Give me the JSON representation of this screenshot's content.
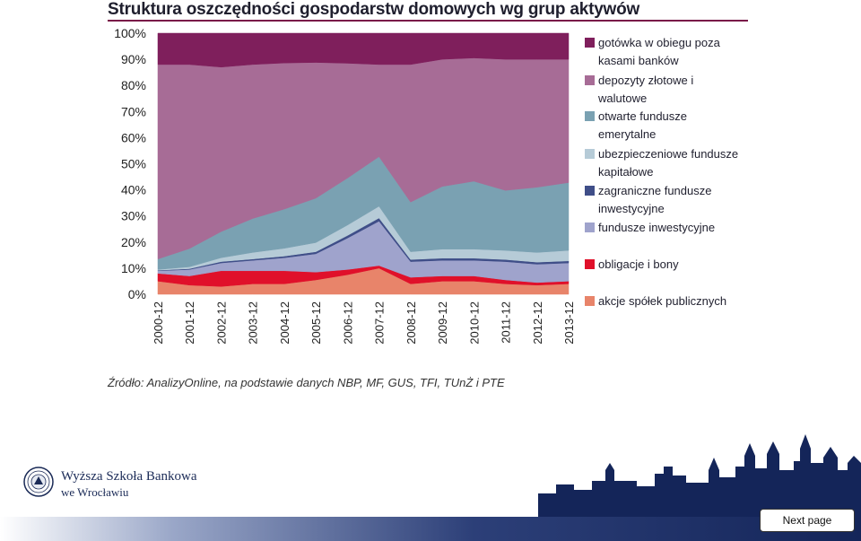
{
  "header": {
    "title": "Struktura oszczędności gospodarstw domowych wg grup aktywów"
  },
  "source_note": "Źródło: AnalizyOnline, na podstawie danych NBP, MF, GUS, TFI, TUnŻ i PTE",
  "logo": {
    "name": "Wyższa Szkoła Bankowa",
    "city": "we Wrocławiu"
  },
  "navigation": {
    "next_label": "Next page"
  },
  "chart_data": {
    "type": "area",
    "stacked": true,
    "title": "Struktura oszczędności gospodarstw domowych wg grup aktywów",
    "xlabel": "",
    "ylabel": "",
    "ylim": [
      0,
      100
    ],
    "y_ticks": [
      "0%",
      "10%",
      "20%",
      "30%",
      "40%",
      "50%",
      "60%",
      "70%",
      "80%",
      "90%",
      "100%"
    ],
    "x_ticks": [
      "2000-12",
      "2001-12",
      "2002-12",
      "2003-12",
      "2004-12",
      "2005-12",
      "2006-12",
      "2007-12",
      "2008-12",
      "2009-12",
      "2010-12",
      "2011-12",
      "2012-12",
      "2013-12"
    ],
    "legend_position": "right",
    "grid": false,
    "series": [
      {
        "name": "akcje spółek publicznych",
        "color": "#e8846a",
        "values": [
          5,
          3.5,
          3,
          4,
          4,
          5.5,
          7.5,
          10,
          4,
          5,
          5,
          4,
          3.5,
          4
        ]
      },
      {
        "name": "obligacje i bony",
        "color": "#e0102a",
        "values": [
          3,
          3.5,
          6,
          5,
          5,
          3,
          2,
          1,
          2.5,
          2,
          2,
          1.5,
          1,
          1
        ]
      },
      {
        "name": "fundusze inwestycyjne",
        "color": "#9fa3cc",
        "values": [
          1,
          2.5,
          3,
          4,
          5,
          7,
          12,
          17,
          6,
          6,
          6,
          7,
          7,
          7
        ]
      },
      {
        "name": "zagraniczne fundusze inwestycyjne",
        "color": "#3f4e88",
        "values": [
          0.2,
          0.3,
          0.5,
          0.5,
          0.6,
          0.8,
          1,
          1.2,
          0.8,
          0.8,
          0.8,
          0.8,
          0.8,
          0.8
        ]
      },
      {
        "name": "ubezpieczeniowe fundusze kapitałowe",
        "color": "#b6cbd7",
        "values": [
          0.3,
          0.7,
          1.5,
          2.5,
          3,
          3.5,
          4,
          4.5,
          3,
          3.5,
          3.5,
          3.5,
          3.7,
          4
        ]
      },
      {
        "name": "otwarte fundusze emerytalne",
        "color": "#7aa1b2",
        "values": [
          4,
          7,
          10,
          13,
          15,
          17,
          18,
          19,
          19,
          24,
          26,
          23,
          25,
          26
        ]
      },
      {
        "name": "depozyty złotowe i walutowe",
        "color": "#a76c96",
        "values": [
          74.5,
          70.5,
          63,
          59,
          56,
          52,
          44,
          35.3,
          52.7,
          48.7,
          47.2,
          50.2,
          49,
          47.2
        ]
      },
      {
        "name": "gotówka w obiegu poza kasami banków",
        "color": "#7f1f5c",
        "values": [
          12,
          12,
          13,
          12,
          11.4,
          11.2,
          11.5,
          12,
          12,
          10,
          9.5,
          10,
          10,
          10
        ]
      }
    ]
  }
}
